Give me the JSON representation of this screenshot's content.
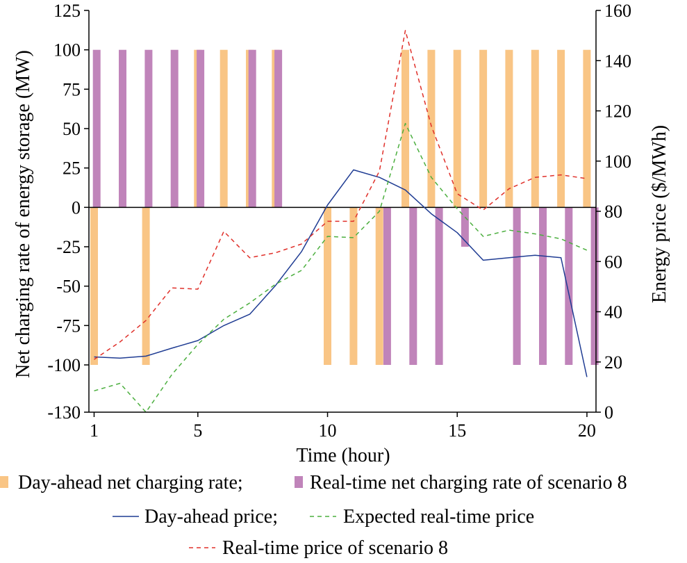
{
  "chart_data": {
    "type": "bar",
    "title": "",
    "xlabel": "Time (hour)",
    "ylabel_left": "Net charging rate of energy storage (MW)",
    "ylabel_right": "Energy price ($/MWh)",
    "x_ticks": [
      "1",
      "5",
      "10",
      "15",
      "20"
    ],
    "x_tick_values": [
      1,
      5,
      10,
      15,
      20
    ],
    "y_left_ticks": [
      "125",
      "100",
      "75",
      "50",
      "25",
      "0",
      "-25",
      "-50",
      "-75",
      "-100",
      "-130"
    ],
    "y_left_tick_values": [
      125,
      100,
      75,
      50,
      25,
      0,
      -25,
      -50,
      -75,
      -100,
      -130
    ],
    "y_right_ticks": [
      "160",
      "140",
      "120",
      "100",
      "80",
      "60",
      "40",
      "20",
      "0"
    ],
    "y_right_tick_values": [
      160,
      140,
      120,
      100,
      80,
      60,
      40,
      20,
      0
    ],
    "xlim": [
      0.8,
      20.35
    ],
    "ylim_left": [
      -130,
      125
    ],
    "ylim_right": [
      0,
      160
    ],
    "legend_placement": "bottom",
    "bar_series": [
      {
        "name": "Day-ahead net charging rate;",
        "color": "#F9C585",
        "x": [
          1,
          1.5,
          2,
          2.5,
          3,
          3.5,
          4,
          4.5,
          5,
          5.5,
          6,
          6.5,
          7,
          7.5,
          8,
          8.5,
          9,
          9.5,
          10,
          10.5,
          11,
          11.5,
          12,
          12.5,
          13,
          13.5,
          14,
          14.5,
          15,
          15.5,
          16,
          16.5,
          17,
          17.5,
          18,
          18.5,
          19,
          19.5,
          20
        ],
        "values": [
          -100,
          0,
          0,
          0,
          -100,
          0,
          0,
          0,
          100,
          0,
          100,
          0,
          100,
          0,
          100,
          0,
          0,
          0,
          -100,
          0,
          -100,
          0,
          -100,
          0,
          100,
          0,
          100,
          0,
          100,
          0,
          100,
          0,
          100,
          0,
          100,
          0,
          100,
          0,
          100
        ]
      },
      {
        "name": "Real-time net charging rate of scenario 8",
        "color": "#C084BA",
        "x": [
          1.1,
          2.1,
          3.1,
          4.1,
          5.1,
          6.1,
          7.1,
          8.1,
          12.3,
          13.3,
          14.3,
          15.3,
          16.3,
          17.3,
          18.3,
          19.3,
          20.3
        ],
        "values": [
          100,
          100,
          100,
          100,
          100,
          0,
          100,
          100,
          -100,
          -100,
          -100,
          -25,
          0,
          -100,
          -100,
          -100,
          -100
        ]
      }
    ],
    "line_series": [
      {
        "name": "Day-ahead price;",
        "color": "#1F3C93",
        "style": "solid",
        "x": [
          1,
          2,
          3,
          4,
          5,
          6,
          7,
          8,
          9,
          10,
          11,
          12,
          13,
          14,
          15,
          16,
          17,
          18,
          19,
          20
        ],
        "values": [
          22,
          21.5,
          22.3,
          25.5,
          28.5,
          34.5,
          39,
          50.5,
          64,
          82.5,
          96.5,
          93.5,
          88.5,
          79,
          71.5,
          60.5,
          61.5,
          62.5,
          61.5,
          14
        ]
      },
      {
        "name": "Expected real-time price",
        "color": "#4CAF3F",
        "style": "dashed",
        "x": [
          1,
          2,
          3,
          4,
          5,
          6,
          7,
          8,
          9,
          10,
          11,
          12,
          13,
          14,
          15,
          16,
          17,
          18,
          19,
          20
        ],
        "values": [
          8.5,
          11.5,
          0,
          15,
          27,
          37,
          43.5,
          51,
          56.5,
          70,
          69.5,
          80,
          115,
          93.5,
          81,
          70,
          72.5,
          71,
          69,
          64.5
        ]
      },
      {
        "name": "Real-time price of scenario 8",
        "color": "#E0302A",
        "style": "dashed",
        "x": [
          1,
          2,
          3,
          4,
          5,
          6,
          7,
          8,
          9,
          10,
          11,
          12,
          13,
          14,
          15,
          16,
          17,
          18,
          19,
          20
        ],
        "values": [
          21,
          28,
          36.5,
          49.5,
          49,
          72,
          61.5,
          63.5,
          67,
          76,
          76,
          96,
          152,
          114,
          87,
          80.5,
          89,
          93.5,
          94.5,
          93
        ]
      }
    ],
    "legend": {
      "row1": [
        "Day-ahead net charging rate;",
        "Real-time net charging rate of scenario 8"
      ],
      "row2": [
        "Day-ahead price;",
        "Expected real-time price"
      ],
      "row3": [
        "Real-time price of scenario 8"
      ]
    }
  }
}
